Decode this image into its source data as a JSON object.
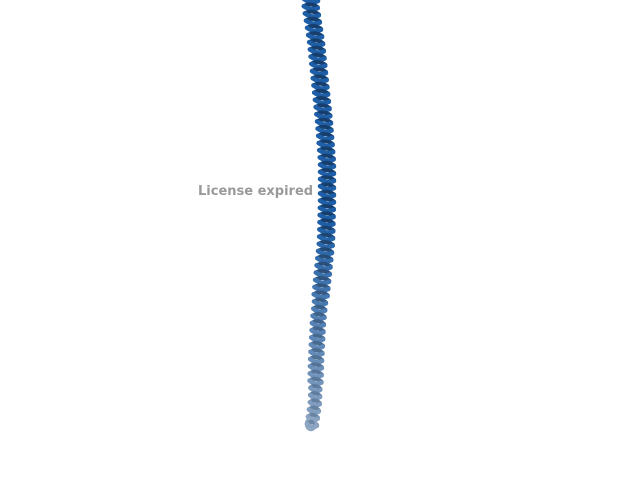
{
  "viewer": {
    "license_text": "License expired"
  },
  "colors": {
    "background": "#ffffff",
    "helix_top": "#1e5fa8",
    "helix_bottom": "#8fa6c2",
    "helix_dark_edge": "#163f6e",
    "label": "#9a9a9a"
  }
}
